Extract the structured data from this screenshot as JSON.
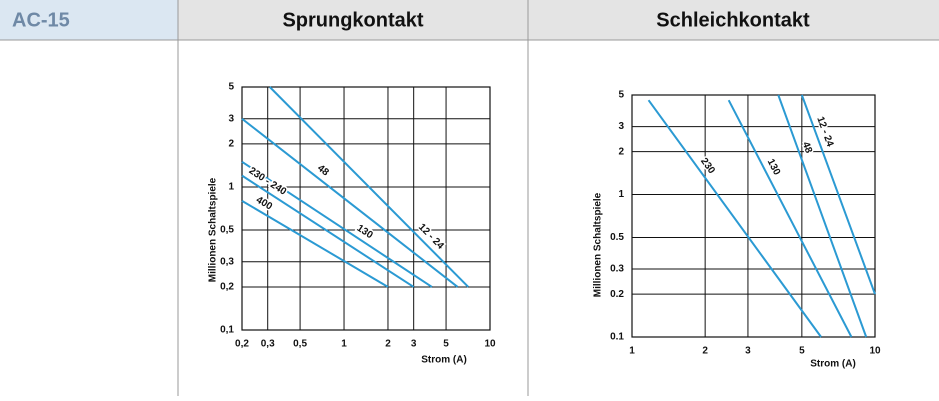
{
  "table": {
    "header": [
      "AC-15",
      "Sprungkontakt",
      "Schleichkontakt"
    ]
  },
  "chart_data": [
    {
      "type": "line",
      "log_x": true,
      "log_y": true,
      "grid": true,
      "x_label": "Strom (A)",
      "y_label": "Millionen Schaltspiele",
      "xlim": [
        0.2,
        10
      ],
      "ylim": [
        0.1,
        5
      ],
      "xticks": [
        {
          "value": 0.2,
          "label": "0,2"
        },
        {
          "value": 0.3,
          "label": "0,3"
        },
        {
          "value": 0.5,
          "label": "0,5"
        },
        1,
        2,
        3,
        5,
        10
      ],
      "yticks": [
        {
          "value": 0.1,
          "label": "0,1"
        },
        {
          "value": 0.2,
          "label": "0,2"
        },
        {
          "value": 0.3,
          "label": "0,3"
        },
        {
          "value": 0.5,
          "label": "0,5"
        },
        1,
        2,
        3,
        5
      ],
      "series": [
        {
          "name": "12 - 24",
          "color": "#2b9ad3",
          "x": [
            0.31,
            7.1
          ],
          "values": [
            5,
            0.2
          ]
        },
        {
          "name": "48",
          "color": "#2b9ad3",
          "x": [
            0.2,
            6
          ],
          "values": [
            3,
            0.2
          ]
        },
        {
          "name": "130",
          "color": "#2b9ad3",
          "x": [
            0.2,
            4
          ],
          "values": [
            1.5,
            0.2
          ]
        },
        {
          "name": "230 - 240",
          "color": "#2b9ad3",
          "x": [
            0.2,
            3
          ],
          "values": [
            1.2,
            0.2
          ]
        },
        {
          "name": "400",
          "color": "#2b9ad3",
          "x": [
            0.2,
            2
          ],
          "values": [
            0.8,
            0.2
          ]
        }
      ]
    },
    {
      "type": "line",
      "log_x": true,
      "log_y": true,
      "grid": true,
      "x_label": "Strom (A)",
      "y_label": "Millionen Schaltspiele",
      "xlim": [
        1,
        10
      ],
      "ylim": [
        0.1,
        5
      ],
      "xticks": [
        1,
        2,
        3,
        5,
        10
      ],
      "yticks": [
        0.1,
        0.2,
        0.3,
        0.5,
        1,
        2,
        3,
        5
      ],
      "series": [
        {
          "name": "230",
          "color": "#2b9ad3",
          "x": [
            1.17,
            6
          ],
          "values": [
            4.6,
            0.1
          ]
        },
        {
          "name": "130",
          "color": "#2b9ad3",
          "x": [
            2.5,
            8
          ],
          "values": [
            4.6,
            0.1
          ]
        },
        {
          "name": "48",
          "color": "#2b9ad3",
          "x": [
            4,
            9.2
          ],
          "values": [
            5,
            0.1
          ]
        },
        {
          "name": "12 - 24",
          "color": "#2b9ad3",
          "x": [
            5,
            10
          ],
          "values": [
            5,
            0.2
          ]
        }
      ]
    }
  ]
}
